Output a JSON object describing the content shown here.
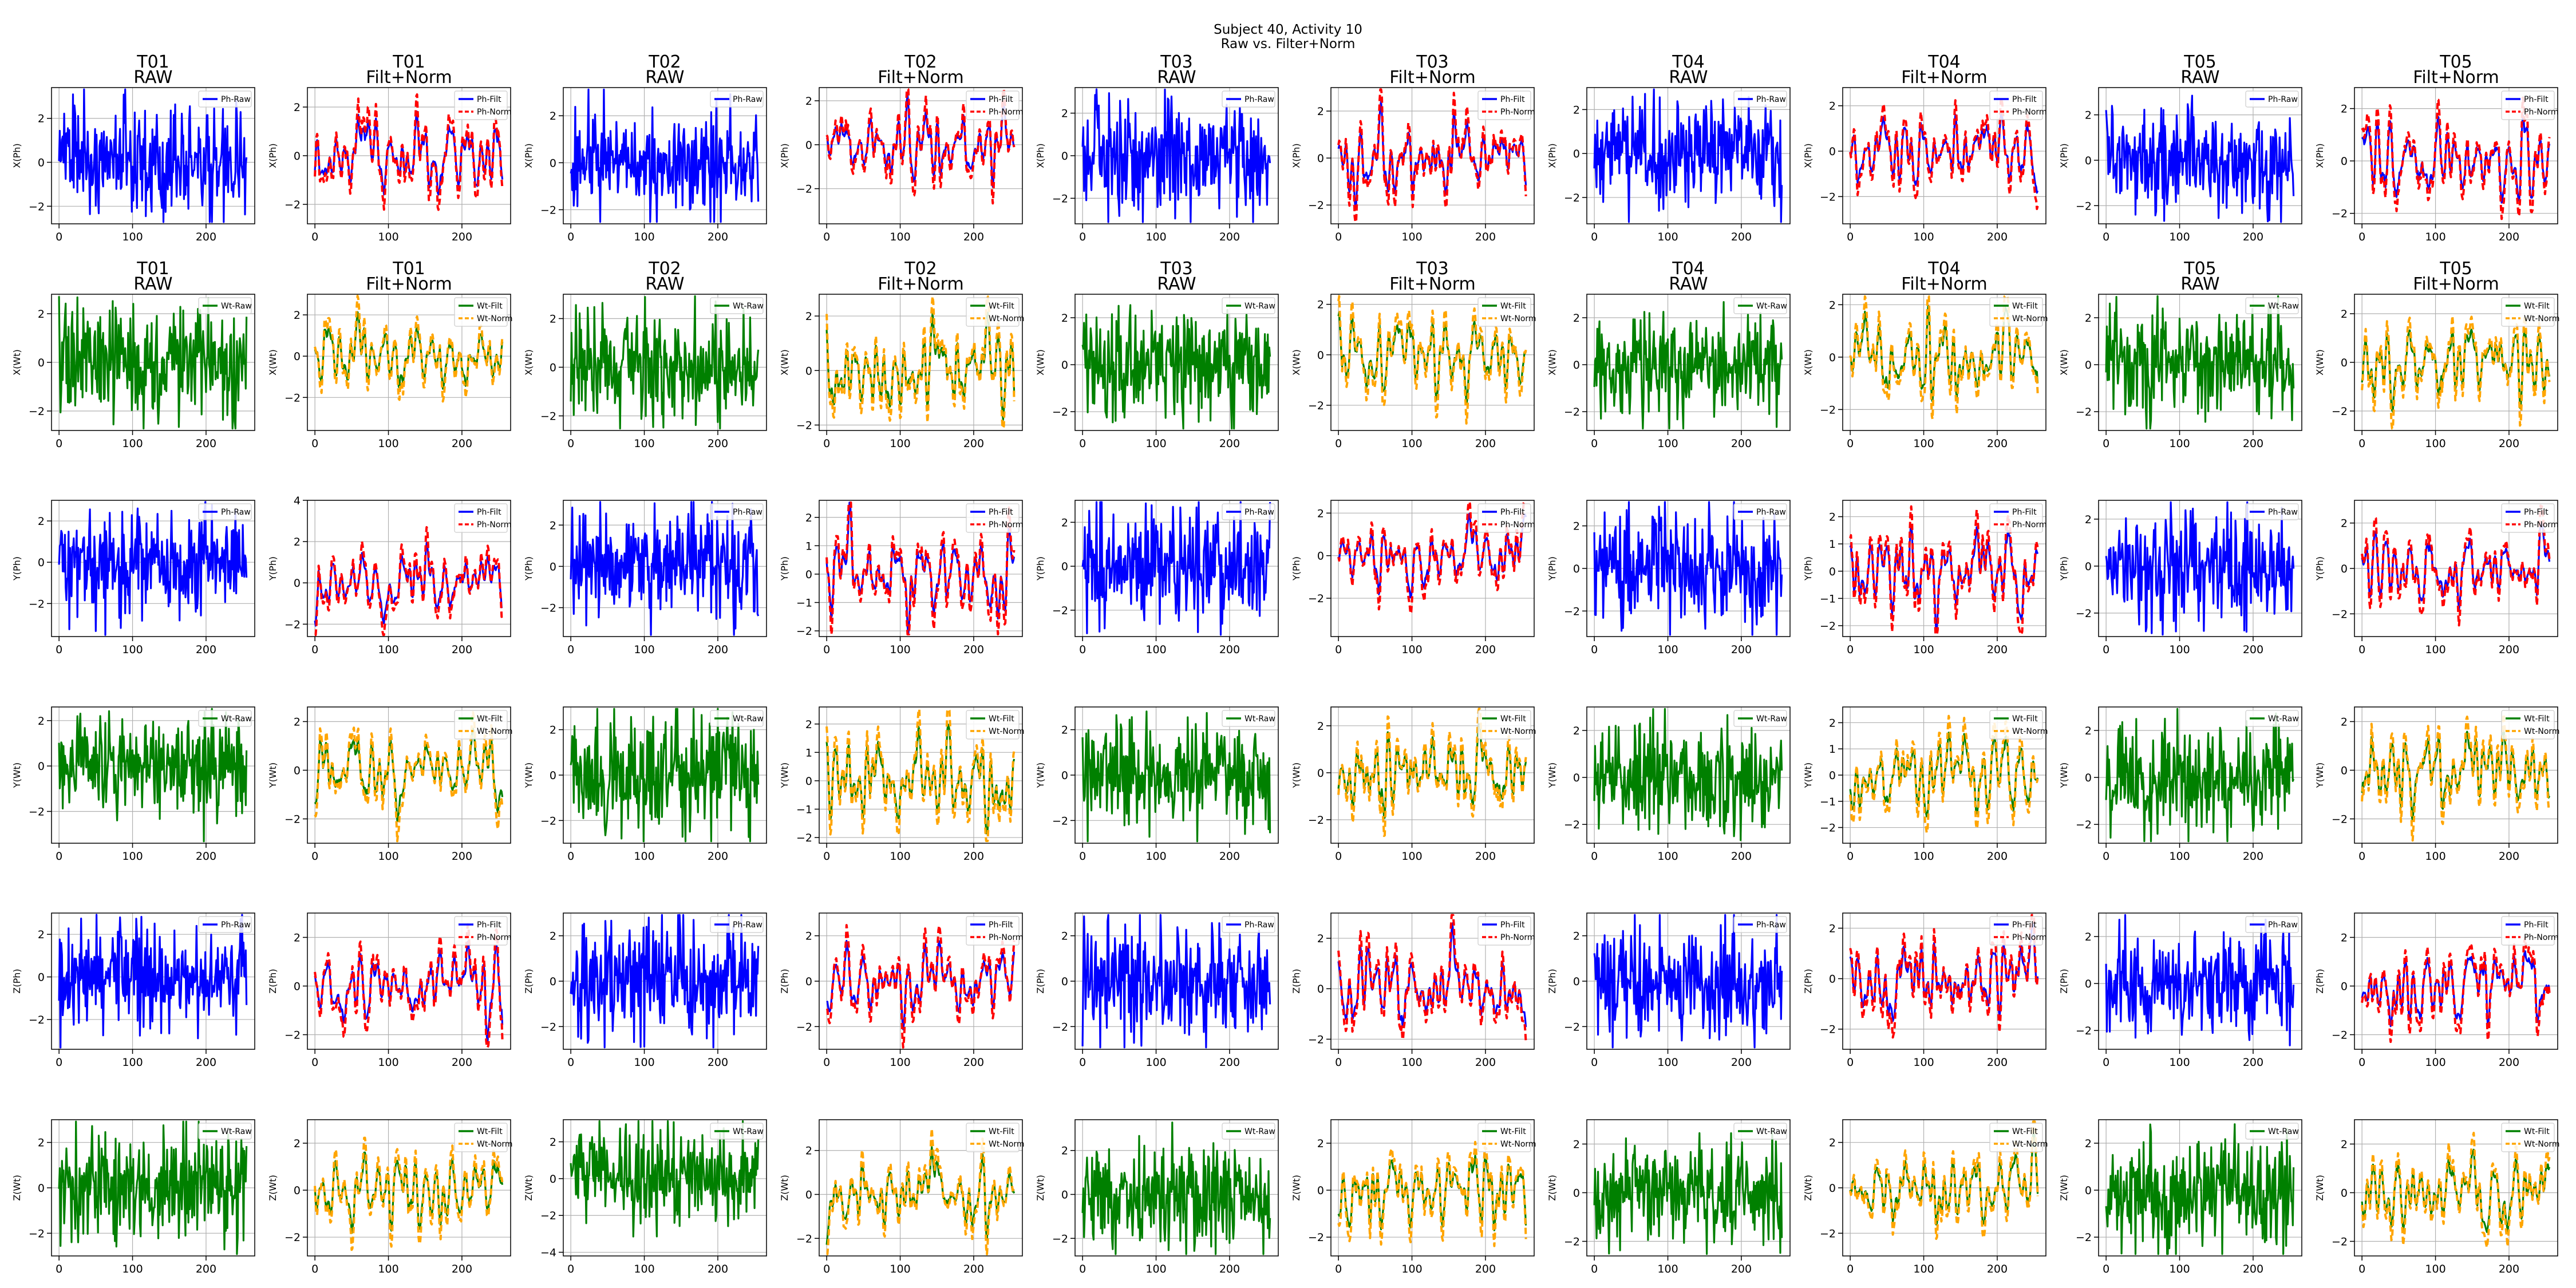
{
  "figure": {
    "title_line1": "Subject 40, Activity 10",
    "title_line2": "Raw vs. Filter+Norm"
  },
  "colors": {
    "Ph-Raw": "#0000ff",
    "Ph-Filt": "#0000ff",
    "Ph-Norm": "#ff0000",
    "Wt-Raw": "#008000",
    "Wt-Filt": "#008000",
    "Wt-Norm": "#ffa500",
    "grid": "#b0b0b0"
  },
  "chart_data": {
    "type": "line",
    "layout": "6 rows x 10 columns of subplots",
    "grid": true,
    "legend_position": "upper right",
    "x_ticks": [
      0,
      100,
      200
    ],
    "x_range": [
      0,
      256
    ],
    "trials": [
      "T01",
      "T02",
      "T03",
      "T04",
      "T05"
    ],
    "column_titles": [
      [
        "T01",
        "RAW"
      ],
      [
        "T01",
        "Filt+Norm"
      ],
      [
        "T02",
        "RAW"
      ],
      [
        "T02",
        "Filt+Norm"
      ],
      [
        "T03",
        "RAW"
      ],
      [
        "T03",
        "Filt+Norm"
      ],
      [
        "T04",
        "RAW"
      ],
      [
        "T04",
        "Filt+Norm"
      ],
      [
        "T05",
        "RAW"
      ],
      [
        "T05",
        "Filt+Norm"
      ]
    ],
    "rows": [
      {
        "ylabel": "X(Ph)",
        "device": "Ph",
        "show_titles": true,
        "yticks": [
          [
            -2,
            0,
            2
          ],
          [
            -2,
            0,
            2
          ],
          [
            -2,
            0,
            2
          ],
          [
            -2,
            0,
            2
          ],
          [
            -2,
            0,
            2
          ],
          [
            -2,
            0,
            2
          ],
          [
            -2,
            0,
            2
          ],
          [
            -2,
            0,
            2
          ],
          [
            -2,
            0,
            2
          ],
          [
            -2,
            0,
            2
          ]
        ],
        "ylim": [
          [
            -2.8,
            3.4
          ],
          [
            -2.8,
            2.8
          ],
          [
            -2.6,
            3.2
          ],
          [
            -3.6,
            2.6
          ],
          [
            -3.2,
            3.2
          ],
          [
            -2.8,
            3
          ],
          [
            -3.2,
            3
          ],
          [
            -3.2,
            2.8
          ],
          [
            -2.8,
            3.2
          ],
          [
            -2.4,
            2.8
          ]
        ]
      },
      {
        "ylabel": "X(Wt)",
        "device": "Wt",
        "show_titles": true,
        "yticks": [
          [
            -2,
            0,
            2
          ],
          [
            -2,
            0,
            2
          ],
          [
            -2,
            0,
            2
          ],
          [
            -2,
            0,
            2
          ],
          [
            -2,
            0,
            2
          ],
          [
            -2,
            0,
            2
          ],
          [
            -2,
            0,
            2
          ],
          [
            -2,
            0,
            2
          ],
          [
            -2,
            0,
            2
          ],
          [
            -2,
            0,
            2
          ]
        ],
        "ylim": [
          [
            -2.8,
            2.8
          ],
          [
            -3.6,
            3
          ],
          [
            -2.6,
            3
          ],
          [
            -2.2,
            2.8
          ],
          [
            -2.8,
            3
          ],
          [
            -3,
            2.4
          ],
          [
            -2.8,
            3
          ],
          [
            -2.8,
            2.4
          ],
          [
            -2.8,
            3
          ],
          [
            -2.8,
            2.8
          ]
        ]
      },
      {
        "ylabel": "Y(Ph)",
        "device": "Ph",
        "show_titles": false,
        "yticks": [
          [
            -2,
            0,
            2
          ],
          [
            -2,
            0,
            2,
            4
          ],
          [
            -2,
            0,
            2
          ],
          [
            -2,
            -1,
            0,
            1,
            2
          ],
          [
            -2,
            0,
            2
          ],
          [
            -2,
            0,
            2
          ],
          [
            -2,
            0,
            2
          ],
          [
            -2,
            -1,
            0,
            1,
            2
          ],
          [
            -2,
            0,
            2
          ],
          [
            -2,
            0,
            2
          ]
        ],
        "ylim": [
          [
            -3.6,
            3
          ],
          [
            -2.6,
            4
          ],
          [
            -3.4,
            3.2
          ],
          [
            -2.2,
            2.6
          ],
          [
            -3.2,
            3
          ],
          [
            -3.8,
            2.6
          ],
          [
            -3.2,
            3.2
          ],
          [
            -2.4,
            2.6
          ],
          [
            -3,
            2.8
          ],
          [
            -3,
            3
          ]
        ]
      },
      {
        "ylabel": "Y(Wt)",
        "device": "Wt",
        "show_titles": false,
        "yticks": [
          [
            -2,
            0,
            2
          ],
          [
            -2,
            0,
            2
          ],
          [
            -2,
            0,
            2
          ],
          [
            -2,
            -1,
            0,
            1,
            2
          ],
          [
            -2,
            0,
            2
          ],
          [
            -2,
            0,
            2
          ],
          [
            -2,
            0,
            2
          ],
          [
            -2,
            -1,
            0,
            1,
            2
          ],
          [
            -2,
            0,
            2
          ],
          [
            -2,
            0,
            2
          ]
        ],
        "ylim": [
          [
            -3.4,
            2.6
          ],
          [
            -3,
            2.6
          ],
          [
            -3,
            3
          ],
          [
            -2.2,
            2.6
          ],
          [
            -3,
            3
          ],
          [
            -3,
            2.8
          ],
          [
            -2.8,
            3
          ],
          [
            -2.6,
            2.6
          ],
          [
            -2.8,
            3
          ],
          [
            -3,
            2.6
          ]
        ]
      },
      {
        "ylabel": "Z(Ph)",
        "device": "Ph",
        "show_titles": false,
        "yticks": [
          [
            -2,
            0,
            2
          ],
          [
            -2,
            0,
            2
          ],
          [
            -2,
            0,
            2
          ],
          [
            -2,
            0,
            2
          ],
          [
            -2,
            0,
            2
          ],
          [
            -2,
            0,
            2
          ],
          [
            -2,
            0,
            2
          ],
          [
            -2,
            0,
            2
          ],
          [
            -2,
            0,
            2
          ],
          [
            -2,
            0,
            2
          ]
        ],
        "ylim": [
          [
            -3.4,
            3
          ],
          [
            -2.6,
            3
          ],
          [
            -3,
            3
          ],
          [
            -3,
            3
          ],
          [
            -3,
            3
          ],
          [
            -2.4,
            3
          ],
          [
            -3,
            3
          ],
          [
            -2.8,
            2.6
          ],
          [
            -2.8,
            3
          ],
          [
            -2.6,
            3
          ]
        ]
      },
      {
        "ylabel": "Z(Wt)",
        "device": "Wt",
        "show_titles": false,
        "yticks": [
          [
            -2,
            0,
            2
          ],
          [
            -2,
            0,
            2
          ],
          [
            -4,
            -2,
            0,
            2
          ],
          [
            -2,
            0,
            2
          ],
          [
            -2,
            0,
            2
          ],
          [
            -2,
            0,
            2
          ],
          [
            -2,
            0,
            2
          ],
          [
            -2,
            0,
            2
          ],
          [
            -2,
            0,
            2
          ],
          [
            -2,
            0,
            2
          ]
        ],
        "ylim": [
          [
            -3,
            3
          ],
          [
            -2.8,
            3
          ],
          [
            -4.2,
            3.2
          ],
          [
            -2.8,
            3.4
          ],
          [
            -2.8,
            3.4
          ],
          [
            -2.8,
            3
          ],
          [
            -2.6,
            3
          ],
          [
            -3,
            3
          ],
          [
            -2.8,
            3
          ],
          [
            -2.6,
            3
          ]
        ]
      }
    ],
    "legends": {
      "Ph_raw": [
        "Ph-Raw"
      ],
      "Ph_fn": [
        "Ph-Filt",
        "Ph-Norm"
      ],
      "Wt_raw": [
        "Wt-Raw"
      ],
      "Wt_fn": [
        "Wt-Filt",
        "Wt-Norm"
      ]
    },
    "series_note": "each subplot shows ~256 samples of a zero-mean signal roughly within the axis y-range; RAW panels show one high-frequency series, Filt+Norm panels show a smoother filtered series and a normalized series"
  }
}
